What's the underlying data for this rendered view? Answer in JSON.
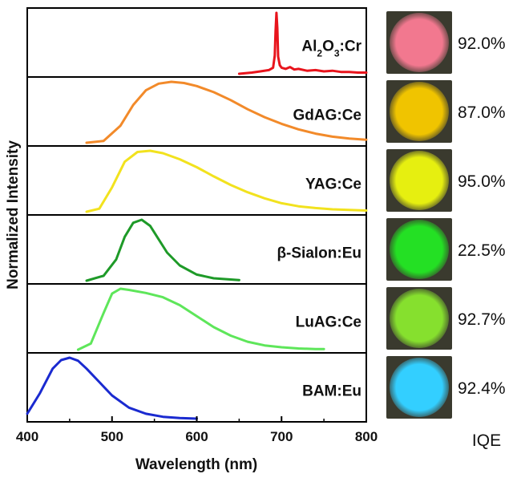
{
  "chart_data": {
    "type": "line",
    "xlabel": "Wavelength (nm)",
    "ylabel": "Normalized Intensity",
    "xlim": [
      400,
      800
    ],
    "xticks": [
      "400",
      "500",
      "600",
      "700",
      "800"
    ],
    "iqe_label": "IQE",
    "series": [
      {
        "name": "Al2O3:Cr",
        "label_parts": [
          {
            "t": "Al"
          },
          {
            "t": "2",
            "sub": true
          },
          {
            "t": "O"
          },
          {
            "t": "3",
            "sub": true
          },
          {
            "t": ":Cr"
          }
        ],
        "color": "#e8141c",
        "iqe": "92.0%",
        "sample_color": "#f2788f",
        "x": [
          650,
          665,
          675,
          685,
          690,
          692,
          693,
          694,
          695,
          696,
          698,
          700,
          705,
          710,
          715,
          720,
          730,
          740,
          750,
          760,
          770,
          780,
          790,
          800
        ],
        "y": [
          0.0,
          0.02,
          0.04,
          0.06,
          0.1,
          0.3,
          0.7,
          1.0,
          0.75,
          0.28,
          0.14,
          0.1,
          0.08,
          0.11,
          0.07,
          0.08,
          0.05,
          0.06,
          0.04,
          0.05,
          0.03,
          0.03,
          0.02,
          0.02
        ]
      },
      {
        "name": "GdAG:Ce",
        "color": "#f28a2a",
        "iqe": "87.0%",
        "sample_color": "#f0c400",
        "x": [
          470,
          490,
          510,
          525,
          540,
          555,
          570,
          585,
          600,
          620,
          640,
          660,
          680,
          700,
          720,
          740,
          760,
          780,
          800
        ],
        "y": [
          0.0,
          0.03,
          0.28,
          0.62,
          0.86,
          0.97,
          1.0,
          0.98,
          0.93,
          0.83,
          0.7,
          0.55,
          0.42,
          0.31,
          0.22,
          0.15,
          0.1,
          0.07,
          0.05
        ]
      },
      {
        "name": "YAG:Ce",
        "color": "#f2e21e",
        "iqe": "95.0%",
        "sample_color": "#e6ef10",
        "x": [
          470,
          485,
          500,
          515,
          530,
          545,
          560,
          580,
          600,
          620,
          640,
          660,
          680,
          700,
          720,
          740,
          760,
          780,
          800
        ],
        "y": [
          0.0,
          0.05,
          0.4,
          0.82,
          0.98,
          1.0,
          0.96,
          0.86,
          0.73,
          0.58,
          0.44,
          0.32,
          0.22,
          0.14,
          0.09,
          0.06,
          0.04,
          0.03,
          0.02
        ]
      },
      {
        "name": "β-Sialon:Eu",
        "color": "#1e9a28",
        "iqe": "22.5%",
        "sample_color": "#24e024",
        "x": [
          470,
          490,
          505,
          515,
          525,
          535,
          545,
          555,
          565,
          580,
          600,
          620,
          640,
          650
        ],
        "y": [
          0.0,
          0.08,
          0.35,
          0.72,
          0.95,
          1.0,
          0.9,
          0.68,
          0.46,
          0.25,
          0.1,
          0.04,
          0.02,
          0.01
        ]
      },
      {
        "name": "LuAG:Ce",
        "color": "#5ee65a",
        "iqe": "92.7%",
        "sample_color": "#86e02e",
        "x": [
          460,
          475,
          490,
          500,
          510,
          520,
          540,
          560,
          580,
          600,
          620,
          640,
          660,
          680,
          700,
          720,
          740,
          750
        ],
        "y": [
          0.0,
          0.1,
          0.6,
          0.92,
          1.0,
          0.98,
          0.93,
          0.86,
          0.73,
          0.55,
          0.37,
          0.23,
          0.13,
          0.07,
          0.04,
          0.02,
          0.01,
          0.01
        ]
      },
      {
        "name": "BAM:Eu",
        "color": "#1a2ad0",
        "iqe": "92.4%",
        "sample_color": "#33cfff",
        "x": [
          400,
          415,
          430,
          440,
          450,
          460,
          470,
          485,
          500,
          520,
          540,
          560,
          580,
          600
        ],
        "y": [
          0.08,
          0.42,
          0.82,
          0.96,
          1.0,
          0.95,
          0.82,
          0.6,
          0.38,
          0.18,
          0.08,
          0.03,
          0.01,
          0.0
        ]
      }
    ]
  }
}
